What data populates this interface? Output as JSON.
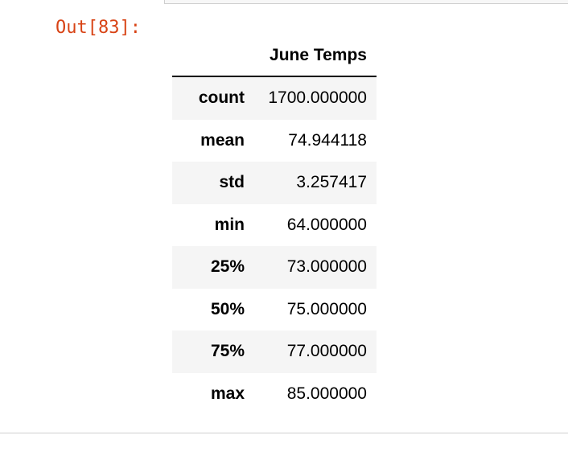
{
  "output": {
    "prompt": "Out[83]:"
  },
  "table": {
    "column_header": "June Temps",
    "rows": [
      {
        "label": "count",
        "value": "1700.000000"
      },
      {
        "label": "mean",
        "value": "74.944118"
      },
      {
        "label": "std",
        "value": "3.257417"
      },
      {
        "label": "min",
        "value": "64.000000"
      },
      {
        "label": "25%",
        "value": "73.000000"
      },
      {
        "label": "50%",
        "value": "75.000000"
      },
      {
        "label": "75%",
        "value": "77.000000"
      },
      {
        "label": "max",
        "value": "85.000000"
      }
    ]
  },
  "colors": {
    "prompt": "#d84315",
    "stripe": "#f5f5f5",
    "divider": "#cfcfcf"
  }
}
